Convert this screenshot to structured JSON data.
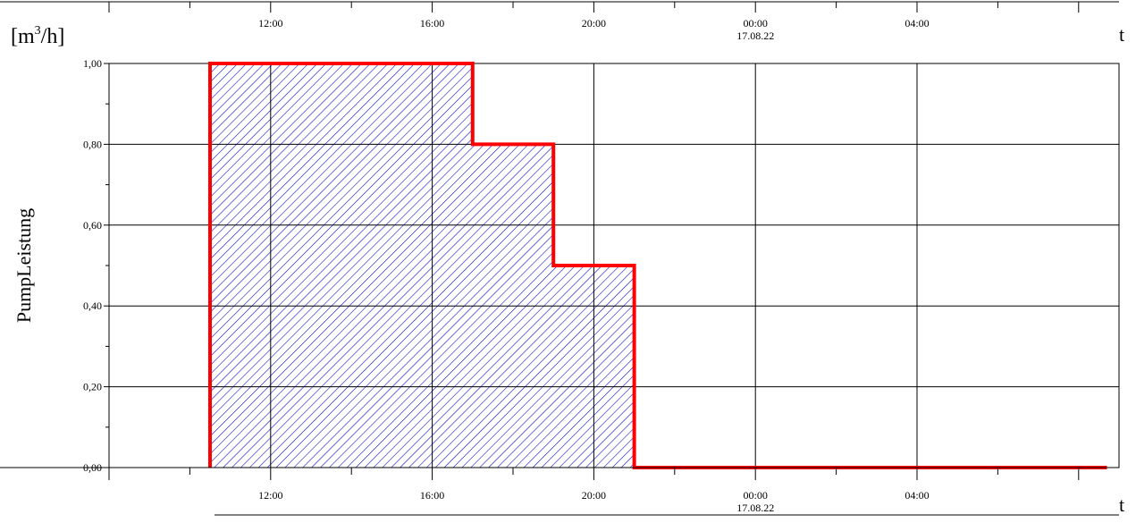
{
  "chart_data": {
    "type": "area",
    "ylabel": "PumpLeistung",
    "yunit_base": "[m",
    "yunit_sup": "3",
    "yunit_tail": "/h]",
    "xlabel": "t",
    "date_label": "17.08.22",
    "ylim": [
      0,
      1
    ],
    "xlim_hours": [
      8.0,
      33.0
    ],
    "y_ticks": [
      {
        "value": 0.0,
        "label": "0,00"
      },
      {
        "value": 0.2,
        "label": "0,20"
      },
      {
        "value": 0.4,
        "label": "0,40"
      },
      {
        "value": 0.6,
        "label": "0,60"
      },
      {
        "value": 0.8,
        "label": "0,80"
      },
      {
        "value": 1.0,
        "label": "1,00"
      }
    ],
    "x_ticks": [
      {
        "hour": 12,
        "label": "12:00"
      },
      {
        "hour": 16,
        "label": "16:00"
      },
      {
        "hour": 20,
        "label": "20:00"
      },
      {
        "hour": 24,
        "label": "00:00"
      },
      {
        "hour": 28,
        "label": "04:00"
      }
    ],
    "series": [
      {
        "x_hours": [
          10.5,
          10.5,
          17.0,
          17.0,
          19.0,
          19.0,
          21.0,
          21.0,
          32.7
        ],
        "y": [
          0.0,
          1.0,
          1.0,
          0.8,
          0.8,
          0.5,
          0.5,
          0.0,
          0.0
        ]
      }
    ],
    "grid": true,
    "colors": {
      "line": "#ff0000",
      "hatch": "#0000cc",
      "grid": "#000000"
    }
  }
}
